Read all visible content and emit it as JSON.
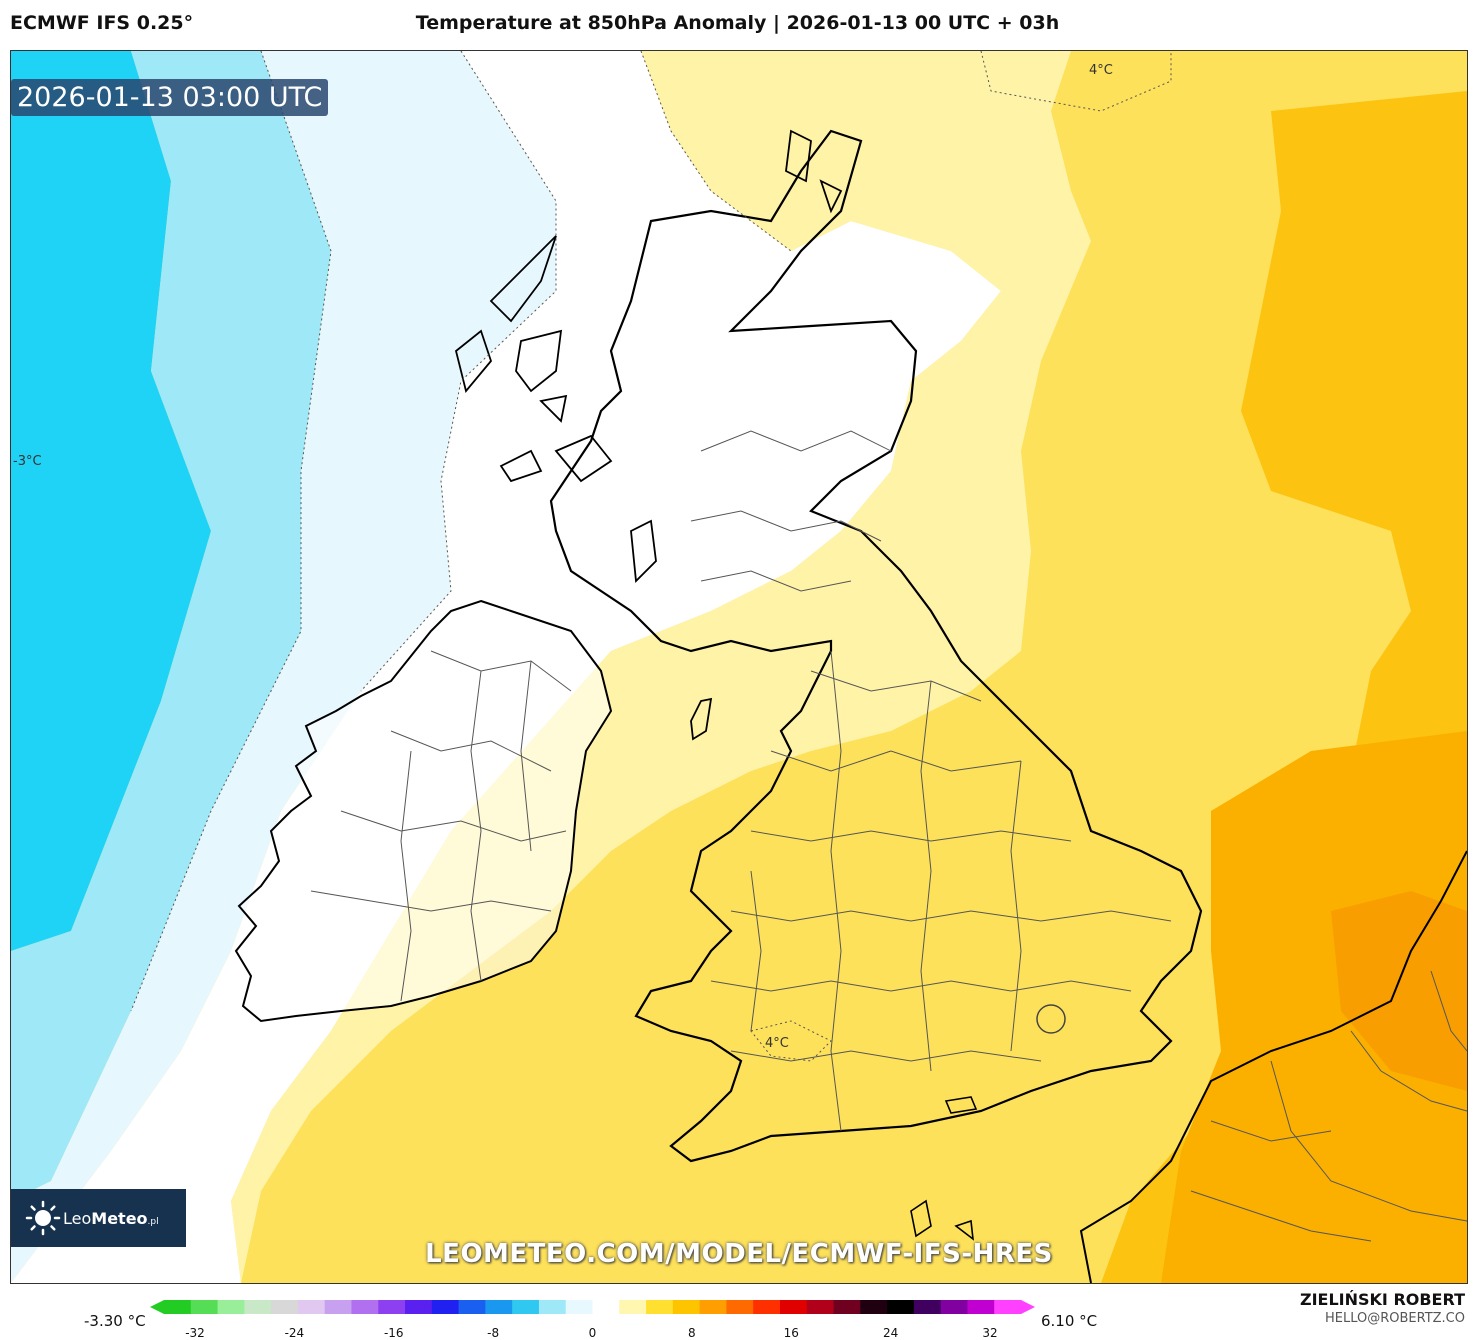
{
  "header": {
    "model": "ECMWF IFS 0.25°",
    "title": "Temperature at 850hPa Anomaly | 2026-01-13 00 UTC + 03h"
  },
  "map": {
    "valid_time": "2026-01-13 03:00 UTC",
    "region": "British Isles",
    "isoline_labels": [
      "4°C",
      "-3°C",
      "4°C"
    ],
    "watermark": "LEOMETEO.COM/MODEL/ECMWF-IFS-HRES",
    "logo": {
      "name_light": "Leo",
      "name_bold": "Meteo",
      "suffix": ".pl"
    }
  },
  "legend": {
    "min_label": "-3.30 °C",
    "max_label": "6.10 °C",
    "ticks": [
      "-32",
      "-24",
      "-16",
      "-8",
      "0",
      "8",
      "16",
      "24",
      "32"
    ],
    "colors": [
      "#22cc22",
      "#55dd55",
      "#99ee99",
      "#c8e8c8",
      "#d8d8d8",
      "#e0c8f0",
      "#c8a0f0",
      "#b070f0",
      "#8c40f0",
      "#5a20f0",
      "#2020f0",
      "#1a60f0",
      "#1a98f0",
      "#30c8f0",
      "#9ee8f8",
      "#e8f8ff",
      "#ffffff",
      "#fff6b0",
      "#ffe030",
      "#ffc400",
      "#ff9e00",
      "#ff6a00",
      "#ff3000",
      "#e00000",
      "#b0001a",
      "#700020",
      "#200010",
      "#000000",
      "#400060",
      "#8000a0",
      "#c000d0",
      "#ff40ff"
    ]
  },
  "author": {
    "name": "ZIELIŃSKI ROBERT",
    "email": "HELLO@ROBERTZ.CO"
  }
}
